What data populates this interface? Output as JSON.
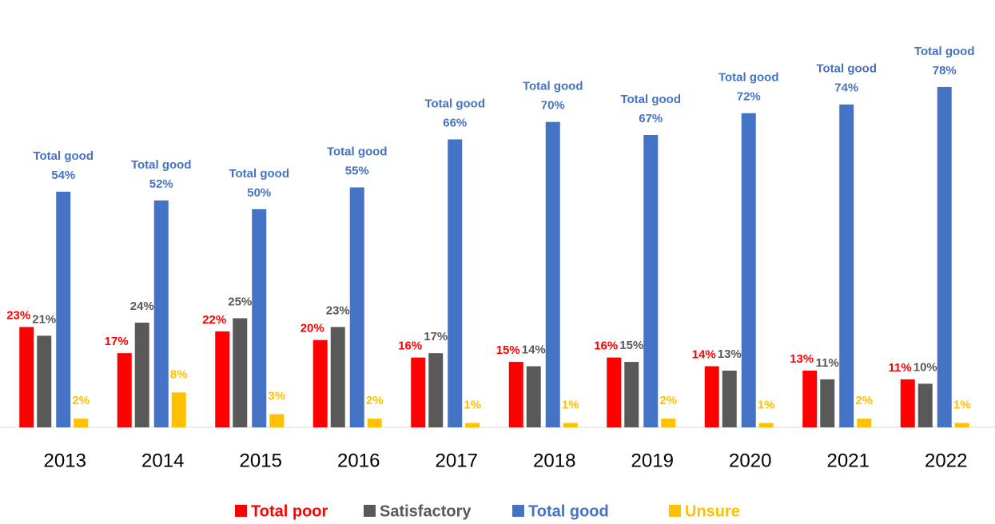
{
  "chart_data": {
    "type": "grouped-bar",
    "categories": [
      "2013",
      "2014",
      "2015",
      "2016",
      "2017",
      "2018",
      "2019",
      "2020",
      "2021",
      "2022"
    ],
    "series": [
      {
        "name": "Total poor",
        "color": "#ff0000",
        "values": [
          23,
          17,
          22,
          20,
          16,
          15,
          16,
          14,
          13,
          11
        ],
        "value_labels": [
          "23%",
          "17%",
          "22%",
          "20%",
          "16%",
          "15%",
          "16%",
          "14%",
          "13%",
          "11%"
        ]
      },
      {
        "name": "Satisfactory",
        "color": "#595959",
        "values": [
          21,
          24,
          25,
          23,
          17,
          14,
          15,
          13,
          11,
          10
        ],
        "value_labels": [
          "21%",
          "24%",
          "25%",
          "23%",
          "17%",
          "14%",
          "15%",
          "13%",
          "11%",
          "10%"
        ]
      },
      {
        "name": "Total good",
        "color": "#4472c4",
        "values": [
          54,
          52,
          50,
          55,
          66,
          70,
          67,
          72,
          74,
          78
        ],
        "value_labels": [
          "54%",
          "52%",
          "50%",
          "55%",
          "66%",
          "70%",
          "67%",
          "72%",
          "74%",
          "78%"
        ]
      },
      {
        "name": "Unsure",
        "color": "#ffc000",
        "values": [
          2,
          8,
          3,
          2,
          1,
          1,
          2,
          1,
          2,
          1
        ],
        "value_labels": [
          "2%",
          "8%",
          "3%",
          "2%",
          "1%",
          "1%",
          "2%",
          "1%",
          "2%",
          "1%"
        ]
      }
    ],
    "ylim": [
      0,
      80
    ],
    "legend": "bottom"
  }
}
